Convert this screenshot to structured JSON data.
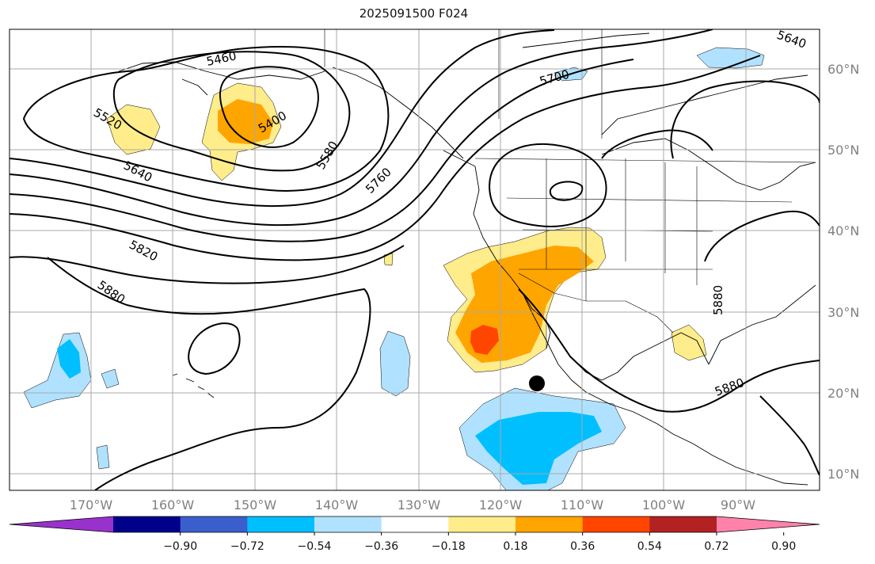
{
  "title": "2025091500 F024",
  "latitude_labels": [
    "60°N",
    "50°N",
    "40°N",
    "30°N",
    "20°N",
    "10°N"
  ],
  "longitude_labels": [
    "170°W",
    "160°W",
    "150°W",
    "140°W",
    "130°W",
    "120°W",
    "110°W",
    "100°W",
    "90°W"
  ],
  "contour_labels": [
    "5460",
    "5520",
    "5400",
    "5640",
    "5580",
    "5760",
    "5700",
    "5640",
    "5820",
    "5880",
    "5880",
    "5880"
  ],
  "marker": "storm-position",
  "colorbar": {
    "ticks": [
      "−0.90",
      "−0.72",
      "−0.54",
      "−0.36",
      "−0.18",
      "0.18",
      "0.36",
      "0.54",
      "0.72",
      "0.90"
    ],
    "colors": [
      "#9932cc",
      "#00008b",
      "#3a5fcd",
      "#00bfff",
      "#b0e2ff",
      "#ffffff",
      "#ffec8b",
      "#ffa500",
      "#ff4500",
      "#b22222",
      "#ff82ab"
    ],
    "extend": "both"
  },
  "colors": {
    "grid": "#a8a8a8",
    "coast": "#000000",
    "contour": "#000000"
  }
}
